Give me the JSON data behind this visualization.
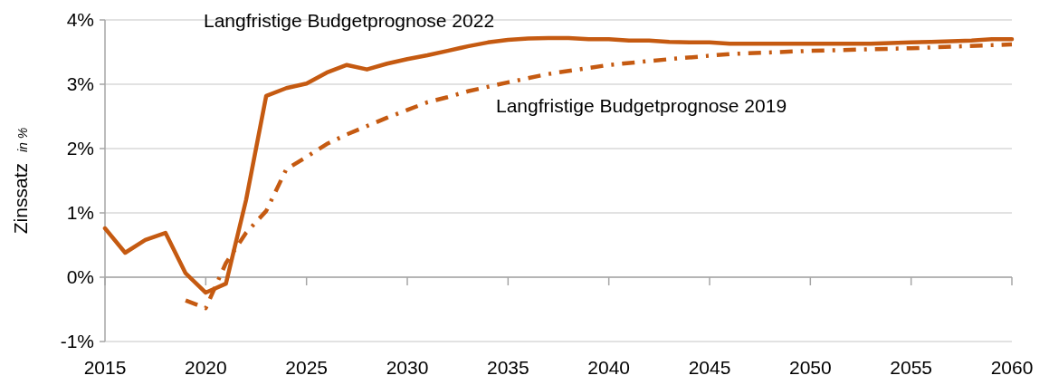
{
  "chart_data": {
    "type": "line",
    "ylabel": "Zinssatz in %",
    "xlim": [
      2015,
      2060
    ],
    "xticks": [
      2015,
      2020,
      2025,
      2030,
      2035,
      2040,
      2045,
      2050,
      2055,
      2060
    ],
    "ylim": [
      -1,
      4
    ],
    "yticks": [
      {
        "value": -1,
        "label": "-1%"
      },
      {
        "value": 0,
        "label": "0%"
      },
      {
        "value": 1,
        "label": "1%"
      },
      {
        "value": 2,
        "label": "2%"
      },
      {
        "value": 3,
        "label": "3%"
      },
      {
        "value": 4,
        "label": "4%"
      }
    ],
    "grid": "y",
    "legend": false,
    "marker": "none",
    "series": [
      {
        "name": "Langfristige Budgetprognose 2022",
        "color": "#c55a11",
        "line_style": "solid",
        "x": [
          2015,
          2016,
          2017,
          2018,
          2019,
          2020,
          2021,
          2022,
          2023,
          2024,
          2025,
          2026,
          2027,
          2028,
          2029,
          2030,
          2031,
          2032,
          2033,
          2034,
          2035,
          2036,
          2037,
          2038,
          2039,
          2040,
          2041,
          2042,
          2043,
          2044,
          2045,
          2046,
          2047,
          2048,
          2049,
          2050,
          2051,
          2052,
          2053,
          2054,
          2055,
          2056,
          2057,
          2058,
          2059,
          2060
        ],
        "values": [
          0.76,
          0.38,
          0.58,
          0.69,
          0.06,
          -0.24,
          -0.1,
          1.2,
          2.82,
          2.94,
          3.01,
          3.18,
          3.3,
          3.23,
          3.32,
          3.39,
          3.45,
          3.52,
          3.59,
          3.65,
          3.69,
          3.71,
          3.72,
          3.72,
          3.7,
          3.7,
          3.68,
          3.68,
          3.66,
          3.65,
          3.65,
          3.63,
          3.63,
          3.63,
          3.63,
          3.63,
          3.63,
          3.63,
          3.63,
          3.64,
          3.65,
          3.66,
          3.67,
          3.68,
          3.7,
          3.7
        ]
      },
      {
        "name": "Langfristige Budgetprognose 2019",
        "color": "#c55a11",
        "line_style": "dashed",
        "x": [
          2019,
          2020,
          2021,
          2022,
          2023,
          2024,
          2025,
          2026,
          2027,
          2028,
          2029,
          2030,
          2031,
          2032,
          2033,
          2035,
          2037,
          2040,
          2043,
          2046,
          2050,
          2055,
          2060
        ],
        "values": [
          -0.36,
          -0.48,
          0.22,
          0.69,
          1.03,
          1.68,
          1.87,
          2.07,
          2.22,
          2.35,
          2.48,
          2.6,
          2.72,
          2.8,
          2.89,
          3.03,
          3.16,
          3.3,
          3.39,
          3.47,
          3.52,
          3.56,
          3.62
        ]
      }
    ]
  }
}
